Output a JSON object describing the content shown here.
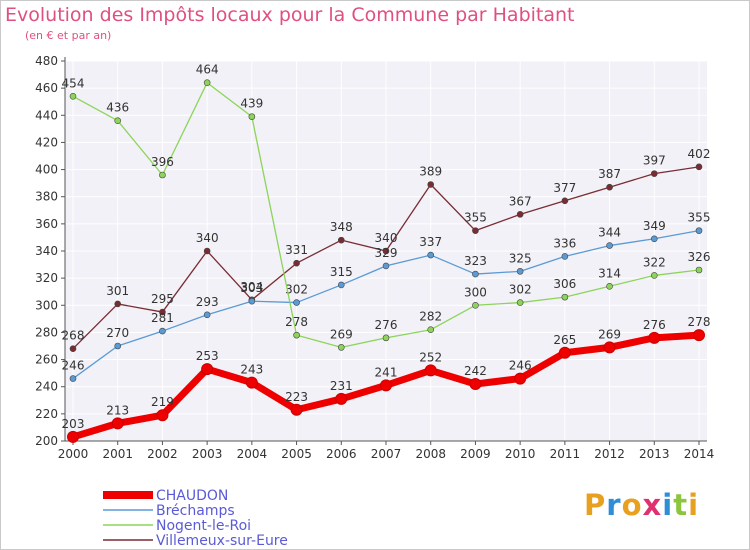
{
  "header": {
    "title": "Evolution des Impôts locaux pour la Commune par Habitant",
    "subtitle": "(en € et par an)"
  },
  "logo": {
    "letters": [
      {
        "ch": "P",
        "color": "#e8a020"
      },
      {
        "ch": "r",
        "color": "#2f8fd6"
      },
      {
        "ch": "o",
        "color": "#e8a020"
      },
      {
        "ch": "x",
        "color": "#e03070"
      },
      {
        "ch": "i",
        "color": "#2f8fd6"
      },
      {
        "ch": "t",
        "color": "#8cc63f"
      },
      {
        "ch": "i",
        "color": "#e8a020"
      }
    ]
  },
  "chart_data": {
    "type": "line",
    "title": "Evolution des Impôts locaux pour la Commune par Habitant",
    "subtitle": "(en € et par an)",
    "x": [
      2000,
      2001,
      2002,
      2003,
      2004,
      2005,
      2006,
      2007,
      2008,
      2009,
      2010,
      2011,
      2012,
      2013,
      2014
    ],
    "ylim": [
      200,
      480
    ],
    "yticks": [
      200,
      220,
      240,
      260,
      280,
      300,
      320,
      340,
      360,
      380,
      400,
      420,
      440,
      460,
      480
    ],
    "grid": true,
    "legend_position": "bottom-left",
    "series": [
      {
        "name": "Villemeux-sur-Eure",
        "color": "#7a2c33",
        "values": [
          268,
          301,
          295,
          340,
          304,
          331,
          348,
          340,
          389,
          355,
          367,
          377,
          387,
          397,
          402
        ]
      },
      {
        "name": "Bréchamps",
        "color": "#5a9ad5",
        "values": [
          246,
          270,
          281,
          293,
          303,
          302,
          315,
          329,
          337,
          323,
          325,
          336,
          344,
          349,
          355
        ]
      },
      {
        "name": "Nogent-le-Roi",
        "color": "#8dd45a",
        "values": [
          454,
          436,
          396,
          464,
          439,
          278,
          269,
          276,
          282,
          300,
          302,
          306,
          314,
          322,
          326
        ]
      },
      {
        "name": "CHAUDON",
        "color": "#ee0000",
        "values": [
          203,
          213,
          219,
          253,
          243,
          223,
          231,
          241,
          252,
          242,
          246,
          265,
          269,
          276,
          278
        ]
      }
    ],
    "legend_order": [
      "CHAUDON",
      "Bréchamps",
      "Nogent-le-Roi",
      "Villemeux-sur-Eure"
    ]
  }
}
